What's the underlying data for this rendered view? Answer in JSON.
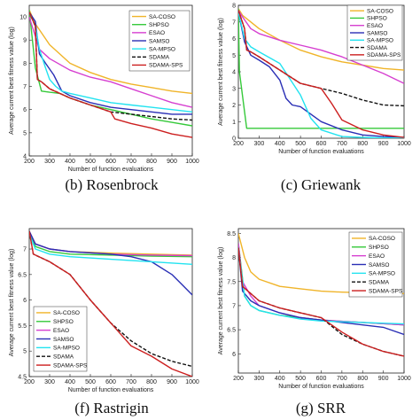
{
  "series_styles": [
    {
      "name": "SA-COSO",
      "color": "#f0b429",
      "dash": ""
    },
    {
      "name": "SHPSO",
      "color": "#35c93a",
      "dash": ""
    },
    {
      "name": "ESAO",
      "color": "#d63fd0",
      "dash": ""
    },
    {
      "name": "SAMSO",
      "color": "#2a2fb5",
      "dash": ""
    },
    {
      "name": "SA-MPSO",
      "color": "#22e3f0",
      "dash": ""
    },
    {
      "name": "SDAMA",
      "color": "#111111",
      "dash": "4,2"
    },
    {
      "name": "SDAMA-SPS",
      "color": "#cc1f1f",
      "dash": ""
    }
  ],
  "chart_data": [
    {
      "type": "line",
      "caption": "(b) Rosenbrock",
      "xlabel": "Number of function evaluations",
      "ylabel": "Average current best fitness value (log)",
      "xlim": [
        200,
        1000
      ],
      "ylim": [
        4,
        10.5
      ],
      "xticks": [
        200,
        300,
        400,
        500,
        600,
        700,
        800,
        900,
        1000
      ],
      "yticks": [
        4,
        5,
        6,
        7,
        8,
        9,
        10
      ],
      "legend": "top-right",
      "series": [
        {
          "name": "SA-COSO",
          "x": [
            200,
            230,
            300,
            400,
            500,
            600,
            700,
            800,
            900,
            1000
          ],
          "y": [
            10.3,
            9.7,
            8.8,
            8.0,
            7.6,
            7.3,
            7.1,
            6.95,
            6.8,
            6.7
          ]
        },
        {
          "name": "SHPSO",
          "x": [
            200,
            230,
            260,
            300,
            350,
            400,
            500,
            600,
            700,
            800,
            900,
            1000
          ],
          "y": [
            10.3,
            7.8,
            6.8,
            6.75,
            6.7,
            6.5,
            6.2,
            6.0,
            5.8,
            5.6,
            5.45,
            5.3
          ]
        },
        {
          "name": "ESAO",
          "x": [
            200,
            250,
            300,
            400,
            500,
            600,
            700,
            800,
            900,
            1000
          ],
          "y": [
            10.0,
            8.6,
            8.2,
            7.7,
            7.4,
            7.2,
            6.9,
            6.6,
            6.3,
            6.1
          ]
        },
        {
          "name": "SAMSO",
          "x": [
            200,
            230,
            250,
            280,
            320,
            360,
            400,
            500,
            600,
            700,
            800,
            900,
            1000
          ],
          "y": [
            10.2,
            9.8,
            8.4,
            8.0,
            7.5,
            6.8,
            6.6,
            6.3,
            6.1,
            6.0,
            5.9,
            5.8,
            5.8
          ]
        },
        {
          "name": "SA-MPSO",
          "x": [
            200,
            230,
            250,
            280,
            300,
            330,
            360,
            400,
            500,
            600,
            700,
            800,
            900,
            1000
          ],
          "y": [
            10.2,
            9.6,
            8.6,
            7.8,
            7.3,
            7.0,
            6.8,
            6.7,
            6.5,
            6.3,
            6.2,
            6.1,
            6.0,
            5.9
          ]
        },
        {
          "name": "SDAMA",
          "x": [
            200,
            230,
            240,
            260,
            300,
            400,
            500,
            600,
            700,
            800,
            900,
            1000
          ],
          "y": [
            10.2,
            9.6,
            7.3,
            7.2,
            6.9,
            6.5,
            6.2,
            5.9,
            5.8,
            5.7,
            5.6,
            5.55
          ]
        },
        {
          "name": "SDAMA-SPS",
          "x": [
            200,
            230,
            240,
            260,
            300,
            400,
            500,
            600,
            620,
            700,
            800,
            900,
            1000
          ],
          "y": [
            10.2,
            9.6,
            7.3,
            7.2,
            6.9,
            6.5,
            6.2,
            5.9,
            5.6,
            5.4,
            5.2,
            4.95,
            4.8
          ]
        }
      ]
    },
    {
      "type": "line",
      "caption": "(c) Griewank",
      "xlabel": "Number of function evaluations",
      "ylabel": "Average current best fitness value (log)",
      "xlim": [
        200,
        1000
      ],
      "ylim": [
        0,
        8
      ],
      "xticks": [
        200,
        300,
        400,
        500,
        600,
        700,
        800,
        900,
        1000
      ],
      "yticks": [
        0,
        1,
        2,
        3,
        4,
        5,
        6,
        7,
        8
      ],
      "legend": "top-right",
      "series": [
        {
          "name": "SA-COSO",
          "x": [
            200,
            220,
            300,
            400,
            500,
            600,
            700,
            800,
            900,
            1000
          ],
          "y": [
            7.8,
            7.4,
            6.6,
            5.9,
            5.3,
            4.9,
            4.6,
            4.4,
            4.2,
            4.1
          ]
        },
        {
          "name": "SHPSO",
          "x": [
            200,
            205,
            240,
            250,
            400,
            600,
            800,
            1000
          ],
          "y": [
            7.8,
            4.0,
            0.6,
            0.6,
            0.6,
            0.6,
            0.6,
            0.6
          ]
        },
        {
          "name": "ESAO",
          "x": [
            200,
            220,
            260,
            300,
            400,
            500,
            600,
            700,
            800,
            900,
            1000
          ],
          "y": [
            7.7,
            7.3,
            6.6,
            6.3,
            5.9,
            5.6,
            5.3,
            4.9,
            4.4,
            3.9,
            3.3
          ]
        },
        {
          "name": "SAMSO",
          "x": [
            200,
            230,
            260,
            300,
            350,
            400,
            430,
            460,
            500,
            600,
            700,
            800,
            900,
            1000
          ],
          "y": [
            7.6,
            5.8,
            5.0,
            4.7,
            4.3,
            3.5,
            2.4,
            2.0,
            1.9,
            1.0,
            0.5,
            0.2,
            0.1,
            0.05
          ]
        },
        {
          "name": "SA-MPSO",
          "x": [
            200,
            230,
            260,
            300,
            400,
            500,
            550,
            600,
            700,
            800,
            900,
            1000
          ],
          "y": [
            7.6,
            6.0,
            5.5,
            5.2,
            4.5,
            2.6,
            1.2,
            0.5,
            0.1,
            0.05,
            0.02,
            0.0
          ]
        },
        {
          "name": "SDAMA",
          "x": [
            200,
            230,
            240,
            260,
            300,
            400,
            500,
            600,
            700,
            800,
            900,
            1000
          ],
          "y": [
            7.7,
            6.6,
            5.3,
            5.2,
            4.9,
            4.1,
            3.3,
            3.0,
            2.7,
            2.3,
            2.0,
            1.95
          ]
        },
        {
          "name": "SDAMA-SPS",
          "x": [
            200,
            230,
            240,
            260,
            300,
            400,
            500,
            600,
            650,
            700,
            800,
            900,
            1000
          ],
          "y": [
            7.7,
            6.6,
            5.3,
            5.2,
            4.9,
            4.1,
            3.3,
            3.0,
            2.1,
            1.1,
            0.5,
            0.2,
            0.05
          ]
        }
      ]
    },
    {
      "type": "line",
      "caption": "(f) Rastrigin",
      "xlabel": "Number of function evaluations",
      "ylabel": "Average current best fitness value (log)",
      "xlim": [
        200,
        1000
      ],
      "ylim": [
        4.5,
        7.4
      ],
      "xticks": [
        200,
        300,
        400,
        500,
        600,
        700,
        800,
        900,
        1000
      ],
      "yticks": [
        4.5,
        5,
        5.5,
        6,
        6.5,
        7
      ],
      "legend": "bottom-left",
      "series": [
        {
          "name": "SA-COSO",
          "x": [
            200,
            230,
            300,
            400,
            600,
            800,
            1000
          ],
          "y": [
            7.35,
            7.1,
            7.0,
            6.95,
            6.92,
            6.9,
            6.88
          ]
        },
        {
          "name": "SHPSO",
          "x": [
            200,
            230,
            300,
            400,
            600,
            800,
            1000
          ],
          "y": [
            7.35,
            7.05,
            6.95,
            6.9,
            6.88,
            6.86,
            6.85
          ]
        },
        {
          "name": "ESAO",
          "x": [
            200,
            230,
            300,
            400,
            600,
            800,
            1000
          ],
          "y": [
            7.35,
            7.1,
            7.0,
            6.95,
            6.9,
            6.88,
            6.87
          ]
        },
        {
          "name": "SAMSO",
          "x": [
            200,
            230,
            300,
            400,
            600,
            700,
            800,
            900,
            950,
            1000
          ],
          "y": [
            7.35,
            7.1,
            7.0,
            6.95,
            6.9,
            6.85,
            6.75,
            6.5,
            6.3,
            6.1
          ]
        },
        {
          "name": "SA-MPSO",
          "x": [
            200,
            230,
            300,
            400,
            600,
            800,
            1000
          ],
          "y": [
            7.3,
            7.0,
            6.9,
            6.85,
            6.8,
            6.75,
            6.7
          ]
        },
        {
          "name": "SDAMA",
          "x": [
            200,
            220,
            300,
            400,
            500,
            600,
            700,
            800,
            900,
            1000
          ],
          "y": [
            7.35,
            6.9,
            6.75,
            6.5,
            6.0,
            5.55,
            5.2,
            4.95,
            4.8,
            4.7
          ]
        },
        {
          "name": "SDAMA-SPS",
          "x": [
            200,
            220,
            300,
            400,
            500,
            600,
            700,
            800,
            900,
            1000
          ],
          "y": [
            7.35,
            6.9,
            6.75,
            6.5,
            6.0,
            5.55,
            5.1,
            4.9,
            4.65,
            4.5
          ]
        }
      ]
    },
    {
      "type": "line",
      "caption": "(g) SRR",
      "xlabel": "Number of function evaluations",
      "ylabel": "Average current best fitness value (log)",
      "xlim": [
        200,
        1000
      ],
      "ylim": [
        5.6,
        8.6
      ],
      "xticks": [
        200,
        300,
        400,
        500,
        600,
        700,
        800,
        900,
        1000
      ],
      "yticks": [
        6,
        6.5,
        7,
        7.5,
        8,
        8.5
      ],
      "legend": "top-right",
      "series": [
        {
          "name": "SA-COSO",
          "x": [
            200,
            230,
            260,
            300,
            400,
            500,
            600,
            700,
            800,
            900,
            1000
          ],
          "y": [
            8.5,
            8.0,
            7.7,
            7.55,
            7.4,
            7.35,
            7.3,
            7.28,
            7.27,
            7.26,
            7.25
          ]
        },
        {
          "name": "SHPSO",
          "x": [
            200,
            230,
            260,
            300,
            400,
            500,
            600,
            800,
            1000
          ],
          "y": [
            8.3,
            7.2,
            7.0,
            6.9,
            6.8,
            6.75,
            6.7,
            6.65,
            6.6
          ]
        },
        {
          "name": "ESAO",
          "x": [
            200,
            220,
            260,
            300,
            400,
            500,
            600,
            800,
            1000
          ],
          "y": [
            8.3,
            7.5,
            7.2,
            7.0,
            6.85,
            6.75,
            6.7,
            6.65,
            6.6
          ]
        },
        {
          "name": "SAMSO",
          "x": [
            200,
            220,
            260,
            300,
            400,
            500,
            600,
            700,
            800,
            900,
            1000
          ],
          "y": [
            8.2,
            7.3,
            7.1,
            7.0,
            6.85,
            6.75,
            6.7,
            6.65,
            6.6,
            6.55,
            6.4
          ]
        },
        {
          "name": "SA-MPSO",
          "x": [
            200,
            230,
            260,
            300,
            400,
            500,
            600,
            800,
            1000
          ],
          "y": [
            8.2,
            7.2,
            7.0,
            6.9,
            6.8,
            6.72,
            6.68,
            6.65,
            6.62
          ]
        },
        {
          "name": "SDAMA",
          "x": [
            200,
            220,
            300,
            400,
            500,
            600,
            700,
            800,
            900,
            1000
          ],
          "y": [
            8.2,
            7.4,
            7.1,
            6.95,
            6.85,
            6.75,
            6.4,
            6.2,
            6.05,
            5.95
          ]
        },
        {
          "name": "SDAMA-SPS",
          "x": [
            200,
            220,
            300,
            400,
            500,
            600,
            700,
            800,
            900,
            1000
          ],
          "y": [
            8.2,
            7.4,
            7.1,
            6.95,
            6.85,
            6.75,
            6.45,
            6.2,
            6.05,
            5.95
          ]
        }
      ]
    }
  ]
}
